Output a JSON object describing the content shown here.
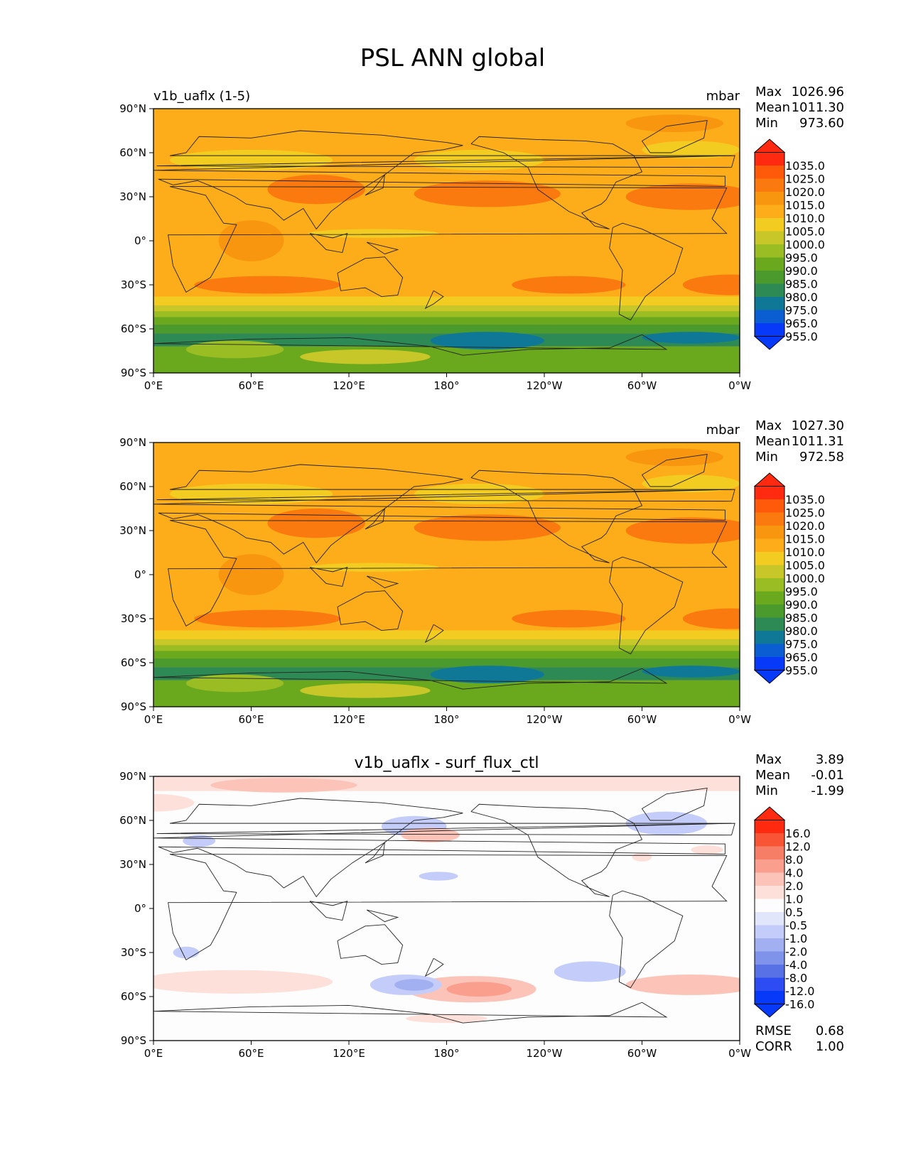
{
  "figure_title": "PSL ANN global",
  "chart_data": [
    {
      "type": "heatmap",
      "title": "",
      "left_title": "v1b_uaflx (1-5)",
      "units": "mbar",
      "stats": [
        {
          "label": "Max",
          "value": "1026.96"
        },
        {
          "label": "Mean",
          "value": "1011.30"
        },
        {
          "label": "Min",
          "value": "973.60"
        }
      ],
      "colorbar_levels": [
        "1035.0",
        "1025.0",
        "1020.0",
        "1015.0",
        "1010.0",
        "1005.0",
        "1000.0",
        "995.0",
        "990.0",
        "985.0",
        "980.0",
        "975.0",
        "965.0",
        "955.0"
      ],
      "x_ticks": [
        "0°E",
        "60°E",
        "120°E",
        "180°",
        "120°W",
        "60°W",
        "0°W"
      ],
      "y_ticks": [
        "90°N",
        "60°N",
        "30°N",
        "0°",
        "30°S",
        "60°S",
        "90°S"
      ],
      "xlim": [
        0,
        360
      ],
      "ylim": [
        -90,
        90
      ],
      "footer": []
    },
    {
      "type": "heatmap",
      "title": "",
      "left_title": "",
      "units": "mbar",
      "stats": [
        {
          "label": "Max",
          "value": "1027.30"
        },
        {
          "label": "Mean",
          "value": "1011.31"
        },
        {
          "label": "Min",
          "value": "972.58"
        }
      ],
      "colorbar_levels": [
        "1035.0",
        "1025.0",
        "1020.0",
        "1015.0",
        "1010.0",
        "1005.0",
        "1000.0",
        "995.0",
        "990.0",
        "985.0",
        "980.0",
        "975.0",
        "965.0",
        "955.0"
      ],
      "x_ticks": [
        "0°E",
        "60°E",
        "120°E",
        "180°",
        "120°W",
        "60°W",
        "0°W"
      ],
      "y_ticks": [
        "90°N",
        "60°N",
        "30°N",
        "0°",
        "30°S",
        "60°S",
        "90°S"
      ],
      "xlim": [
        0,
        360
      ],
      "ylim": [
        -90,
        90
      ],
      "footer": []
    },
    {
      "type": "heatmap",
      "title": "v1b_uaflx - surf_flux_ctl",
      "left_title": "",
      "units": "",
      "stats": [
        {
          "label": "Max",
          "value": "3.89"
        },
        {
          "label": "Mean",
          "value": "-0.01"
        },
        {
          "label": "Min",
          "value": "-1.99"
        }
      ],
      "colorbar_levels": [
        "16.0",
        "12.0",
        "8.0",
        "4.0",
        "2.0",
        "1.0",
        "0.5",
        "-0.5",
        "-1.0",
        "-2.0",
        "-4.0",
        "-8.0",
        "-12.0",
        "-16.0"
      ],
      "x_ticks": [
        "0°E",
        "60°E",
        "120°E",
        "180°",
        "120°W",
        "60°W",
        "0°W"
      ],
      "y_ticks": [
        "90°N",
        "60°N",
        "30°N",
        "0°",
        "30°S",
        "60°S",
        "90°S"
      ],
      "xlim": [
        0,
        360
      ],
      "ylim": [
        -90,
        90
      ],
      "footer": [
        {
          "label": "RMSE",
          "value": "0.68"
        },
        {
          "label": "CORR",
          "value": "1.00"
        }
      ]
    }
  ],
  "colors": {
    "abs_levels": [
      "#ff2a10",
      "#ff5a0a",
      "#fb7a10",
      "#f9960f",
      "#fdad19",
      "#f3cc22",
      "#c8c72a",
      "#9bbd24",
      "#6aa91d",
      "#4a9a2e",
      "#2e8a55",
      "#0f7896",
      "#0a5ed2",
      "#0639f8"
    ],
    "diff_levels": [
      "#ff2a10",
      "#f85536",
      "#f77e66",
      "#fa9e8e",
      "#fcc4b8",
      "#fde0da",
      "#fdfdfd",
      "#e1e6fb",
      "#c4cdf9",
      "#a2b0f2",
      "#7f93ea",
      "#5872e6",
      "#2d4df2",
      "#0639f8"
    ],
    "land": "#222222"
  }
}
